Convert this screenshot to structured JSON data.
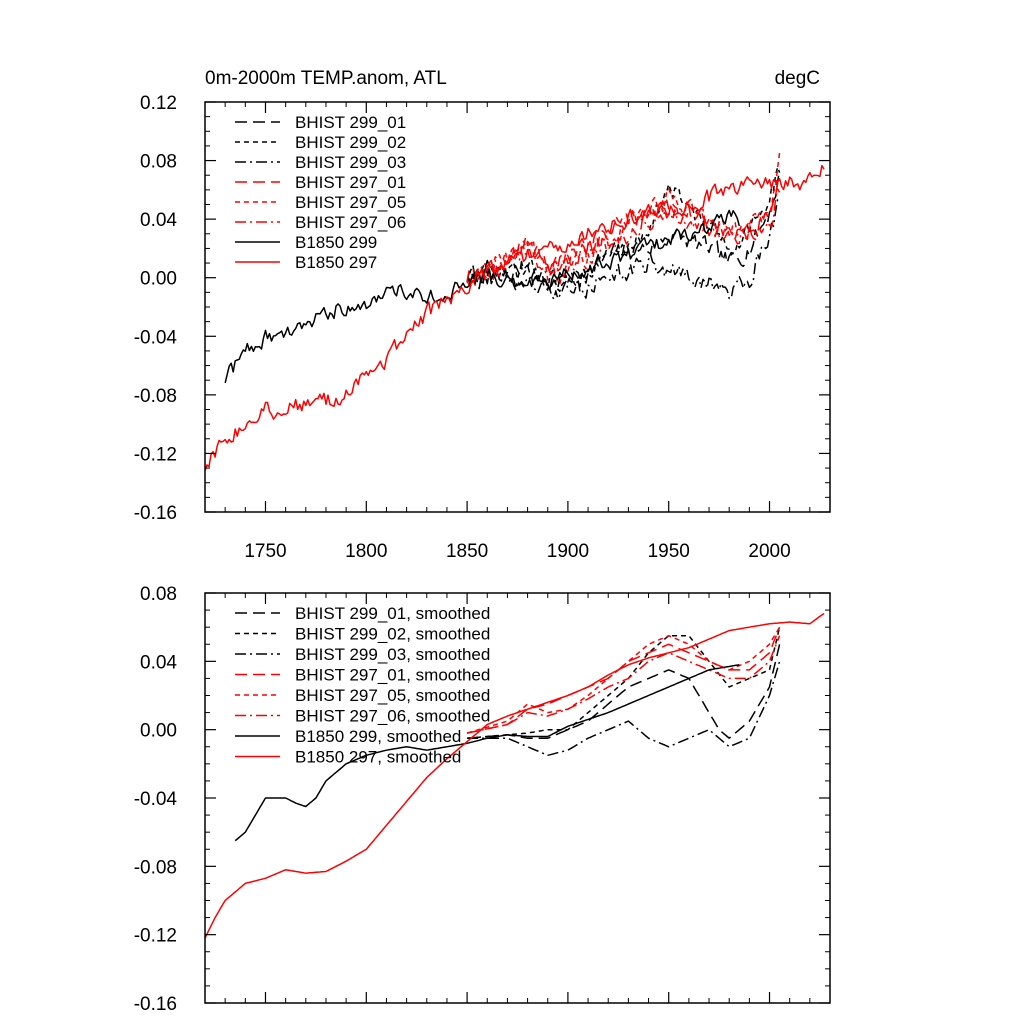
{
  "chart_data": [
    {
      "type": "line",
      "title": "0m-2000m TEMP.anom, ATL",
      "units": "degC",
      "xlim": [
        1720,
        2030
      ],
      "ylim": [
        -0.16,
        0.12
      ],
      "xticks": [
        1750,
        1800,
        1850,
        1900,
        1950,
        2000
      ],
      "xtick_labels": [
        "1750",
        "1800",
        "1850",
        "1900",
        "1950",
        "2000"
      ],
      "yticks": [
        -0.16,
        -0.12,
        -0.08,
        -0.04,
        0.0,
        0.04,
        0.08,
        0.12
      ],
      "ytick_labels": [
        "-0.16",
        "-0.12",
        "-0.08",
        "-0.04",
        "0.00",
        "0.04",
        "0.08",
        "0.12"
      ],
      "legend_position": "top-left",
      "series": [
        {
          "name": "BHIST 299_01",
          "color": "#000000",
          "dash": "long-dash",
          "noise": 0.006,
          "x": [
            1850,
            1860,
            1870,
            1880,
            1890,
            1900,
            1910,
            1920,
            1930,
            1940,
            1950,
            1960,
            1970,
            1980,
            1990,
            2000,
            2005
          ],
          "y": [
            0.0,
            0.005,
            0.0,
            0.01,
            -0.005,
            0.0,
            0.005,
            0.015,
            0.02,
            0.02,
            0.03,
            0.025,
            0.02,
            0.01,
            0.02,
            0.045,
            0.07
          ]
        },
        {
          "name": "BHIST 299_02",
          "color": "#000000",
          "dash": "short-dash",
          "noise": 0.006,
          "x": [
            1850,
            1860,
            1870,
            1880,
            1890,
            1900,
            1910,
            1920,
            1930,
            1940,
            1950,
            1960,
            1970,
            1980,
            1990,
            2000,
            2005
          ],
          "y": [
            0.0,
            0.005,
            0.0,
            0.005,
            0.0,
            -0.005,
            0.005,
            0.015,
            0.02,
            0.035,
            0.06,
            0.05,
            0.035,
            0.02,
            0.035,
            0.05,
            0.075
          ]
        },
        {
          "name": "BHIST 299_03",
          "color": "#000000",
          "dash": "dash-dot",
          "noise": 0.006,
          "x": [
            1850,
            1860,
            1870,
            1880,
            1890,
            1900,
            1910,
            1920,
            1930,
            1940,
            1950,
            1960,
            1970,
            1980,
            1990,
            2000,
            2005
          ],
          "y": [
            0.0,
            0.0,
            0.0,
            -0.005,
            -0.01,
            -0.01,
            -0.005,
            0.0,
            0.005,
            0.01,
            0.005,
            0.0,
            -0.005,
            -0.01,
            0.0,
            0.03,
            0.055
          ]
        },
        {
          "name": "BHIST 297_01",
          "color": "#ff0000",
          "dash": "long-dash",
          "noise": 0.006,
          "x": [
            1850,
            1860,
            1870,
            1880,
            1890,
            1900,
            1910,
            1920,
            1930,
            1940,
            1950,
            1960,
            1970,
            1980,
            1990,
            2000,
            2005
          ],
          "y": [
            0.0,
            0.005,
            0.01,
            0.025,
            0.01,
            0.015,
            0.02,
            0.03,
            0.04,
            0.045,
            0.05,
            0.045,
            0.04,
            0.03,
            0.03,
            0.04,
            0.065
          ]
        },
        {
          "name": "BHIST 297_05",
          "color": "#ff0000",
          "dash": "short-dash",
          "noise": 0.006,
          "x": [
            1850,
            1860,
            1870,
            1880,
            1890,
            1900,
            1910,
            1920,
            1930,
            1940,
            1950,
            1960,
            1970,
            1980,
            1990,
            2000,
            2005
          ],
          "y": [
            0.0,
            0.005,
            0.015,
            0.03,
            0.0,
            0.005,
            0.015,
            0.025,
            0.035,
            0.045,
            0.055,
            0.05,
            0.04,
            0.03,
            0.035,
            0.045,
            0.08
          ]
        },
        {
          "name": "BHIST 297_06",
          "color": "#ff0000",
          "dash": "dash-dot",
          "noise": 0.006,
          "x": [
            1850,
            1860,
            1870,
            1880,
            1890,
            1900,
            1910,
            1920,
            1930,
            1940,
            1950,
            1960,
            1970,
            1980,
            1990,
            2000,
            2005
          ],
          "y": [
            0.0,
            0.005,
            0.01,
            0.02,
            0.005,
            0.01,
            0.02,
            0.025,
            0.03,
            0.04,
            0.045,
            0.04,
            0.035,
            0.025,
            0.03,
            0.035,
            0.06
          ]
        },
        {
          "name": "B1850 299",
          "color": "#000000",
          "dash": "solid",
          "noise": 0.005,
          "x": [
            1730,
            1740,
            1750,
            1760,
            1770,
            1780,
            1790,
            1800,
            1810,
            1820,
            1830,
            1840,
            1850,
            1860,
            1870,
            1880,
            1890,
            1900,
            1910,
            1920,
            1930,
            1940,
            1950,
            1960,
            1970,
            1980,
            1985
          ],
          "y": [
            -0.07,
            -0.05,
            -0.04,
            -0.04,
            -0.035,
            -0.025,
            -0.018,
            -0.016,
            -0.012,
            -0.008,
            -0.012,
            -0.01,
            -0.005,
            0.0,
            -0.002,
            -0.003,
            -0.003,
            0.002,
            0.006,
            0.01,
            0.015,
            0.02,
            0.025,
            0.03,
            0.035,
            0.04,
            0.04
          ]
        },
        {
          "name": "B1850 297",
          "color": "#ff0000",
          "dash": "solid",
          "noise": 0.005,
          "x": [
            1720,
            1730,
            1740,
            1750,
            1760,
            1770,
            1780,
            1790,
            1800,
            1810,
            1820,
            1830,
            1840,
            1850,
            1860,
            1870,
            1880,
            1890,
            1900,
            1910,
            1920,
            1930,
            1940,
            1950,
            1960,
            1970,
            1980,
            1990,
            2000,
            2010,
            2020,
            2027
          ],
          "y": [
            -0.13,
            -0.11,
            -0.1,
            -0.09,
            -0.09,
            -0.085,
            -0.085,
            -0.08,
            -0.065,
            -0.055,
            -0.04,
            -0.025,
            -0.015,
            -0.005,
            0.005,
            0.01,
            0.015,
            0.02,
            0.025,
            0.03,
            0.035,
            0.04,
            0.045,
            0.048,
            0.05,
            0.055,
            0.06,
            0.062,
            0.065,
            0.065,
            0.065,
            0.075
          ]
        }
      ]
    },
    {
      "type": "line",
      "xlim": [
        1720,
        2030
      ],
      "ylim": [
        -0.16,
        0.08
      ],
      "xticks": [
        1750,
        1800,
        1850,
        1900,
        1950,
        2000
      ],
      "yticks": [
        -0.16,
        -0.12,
        -0.08,
        -0.04,
        0.0,
        0.04,
        0.08
      ],
      "ytick_labels": [
        "-0.16",
        "-0.12",
        "-0.08",
        "-0.04",
        "0.00",
        "0.04",
        "0.08"
      ],
      "legend_position": "top-left",
      "series": [
        {
          "name": "BHIST 299_01, smoothed",
          "color": "#000000",
          "dash": "long-dash",
          "noise": 0,
          "x": [
            1850,
            1870,
            1880,
            1890,
            1900,
            1910,
            1920,
            1930,
            1940,
            1950,
            1960,
            1970,
            1975,
            1980,
            1990,
            2000,
            2005
          ],
          "y": [
            -0.005,
            -0.003,
            -0.005,
            -0.005,
            0.0,
            0.005,
            0.015,
            0.025,
            0.03,
            0.035,
            0.03,
            0.01,
            0.0,
            -0.005,
            0.005,
            0.025,
            0.05
          ]
        },
        {
          "name": "BHIST 299_02, smoothed",
          "color": "#000000",
          "dash": "short-dash",
          "noise": 0,
          "x": [
            1850,
            1870,
            1880,
            1890,
            1900,
            1910,
            1920,
            1930,
            1940,
            1950,
            1960,
            1970,
            1980,
            1990,
            2000,
            2005
          ],
          "y": [
            -0.005,
            -0.003,
            -0.002,
            0.0,
            0.0,
            0.01,
            0.02,
            0.03,
            0.045,
            0.055,
            0.055,
            0.04,
            0.025,
            0.03,
            0.035,
            0.06
          ]
        },
        {
          "name": "BHIST 299_03, smoothed",
          "color": "#000000",
          "dash": "dash-dot",
          "noise": 0,
          "x": [
            1850,
            1870,
            1880,
            1890,
            1900,
            1910,
            1920,
            1930,
            1940,
            1950,
            1960,
            1970,
            1980,
            1990,
            2000,
            2005
          ],
          "y": [
            -0.005,
            -0.005,
            -0.01,
            -0.015,
            -0.012,
            -0.005,
            0.0,
            0.005,
            -0.005,
            -0.01,
            -0.005,
            0.0,
            -0.01,
            -0.005,
            0.02,
            0.04
          ]
        },
        {
          "name": "BHIST 297_01, smoothed",
          "color": "#ff0000",
          "dash": "long-dash",
          "noise": 0,
          "x": [
            1850,
            1870,
            1880,
            1890,
            1900,
            1910,
            1920,
            1930,
            1940,
            1950,
            1960,
            1970,
            1980,
            1990,
            2000,
            2005
          ],
          "y": [
            -0.002,
            0.003,
            0.012,
            0.015,
            0.02,
            0.025,
            0.03,
            0.04,
            0.045,
            0.05,
            0.045,
            0.04,
            0.035,
            0.035,
            0.045,
            0.06
          ]
        },
        {
          "name": "BHIST 297_05, smoothed",
          "color": "#ff0000",
          "dash": "short-dash",
          "noise": 0,
          "x": [
            1850,
            1870,
            1880,
            1890,
            1900,
            1910,
            1920,
            1930,
            1940,
            1950,
            1960,
            1970,
            1980,
            1990,
            2000,
            2005
          ],
          "y": [
            -0.002,
            0.005,
            0.015,
            0.01,
            0.012,
            0.02,
            0.03,
            0.04,
            0.05,
            0.055,
            0.05,
            0.04,
            0.035,
            0.04,
            0.05,
            0.06
          ]
        },
        {
          "name": "BHIST 297_06, smoothed",
          "color": "#ff0000",
          "dash": "dash-dot",
          "noise": 0,
          "x": [
            1850,
            1870,
            1880,
            1890,
            1900,
            1910,
            1920,
            1930,
            1940,
            1950,
            1960,
            1970,
            1980,
            1990,
            2000,
            2005
          ],
          "y": [
            -0.002,
            0.003,
            0.01,
            0.008,
            0.012,
            0.018,
            0.025,
            0.03,
            0.04,
            0.045,
            0.04,
            0.035,
            0.03,
            0.03,
            0.04,
            0.055
          ]
        },
        {
          "name": "B1850 299, smoothed",
          "color": "#000000",
          "dash": "solid",
          "noise": 0,
          "x": [
            1735,
            1740,
            1745,
            1750,
            1760,
            1765,
            1770,
            1775,
            1780,
            1790,
            1800,
            1810,
            1820,
            1830,
            1840,
            1850,
            1860,
            1870,
            1880,
            1890,
            1900,
            1910,
            1920,
            1930,
            1940,
            1950,
            1960,
            1970,
            1980,
            1985
          ],
          "y": [
            -0.065,
            -0.06,
            -0.05,
            -0.04,
            -0.04,
            -0.043,
            -0.045,
            -0.04,
            -0.03,
            -0.02,
            -0.015,
            -0.012,
            -0.01,
            -0.012,
            -0.01,
            -0.008,
            -0.005,
            -0.003,
            -0.004,
            -0.004,
            0.002,
            0.006,
            0.01,
            0.015,
            0.02,
            0.025,
            0.03,
            0.035,
            0.037,
            0.038
          ]
        },
        {
          "name": "B1850 297, smoothed",
          "color": "#ff0000",
          "dash": "solid",
          "noise": 0,
          "x": [
            1720,
            1725,
            1730,
            1740,
            1750,
            1760,
            1770,
            1780,
            1790,
            1800,
            1810,
            1820,
            1830,
            1840,
            1850,
            1860,
            1870,
            1880,
            1890,
            1900,
            1910,
            1920,
            1930,
            1940,
            1950,
            1960,
            1970,
            1980,
            1990,
            2000,
            2010,
            2020,
            2027
          ],
          "y": [
            -0.122,
            -0.11,
            -0.1,
            -0.09,
            -0.087,
            -0.082,
            -0.084,
            -0.083,
            -0.077,
            -0.07,
            -0.056,
            -0.042,
            -0.028,
            -0.017,
            -0.007,
            0.003,
            0.008,
            0.012,
            0.016,
            0.02,
            0.025,
            0.032,
            0.038,
            0.042,
            0.045,
            0.048,
            0.053,
            0.058,
            0.06,
            0.062,
            0.063,
            0.062,
            0.068
          ]
        }
      ]
    }
  ]
}
